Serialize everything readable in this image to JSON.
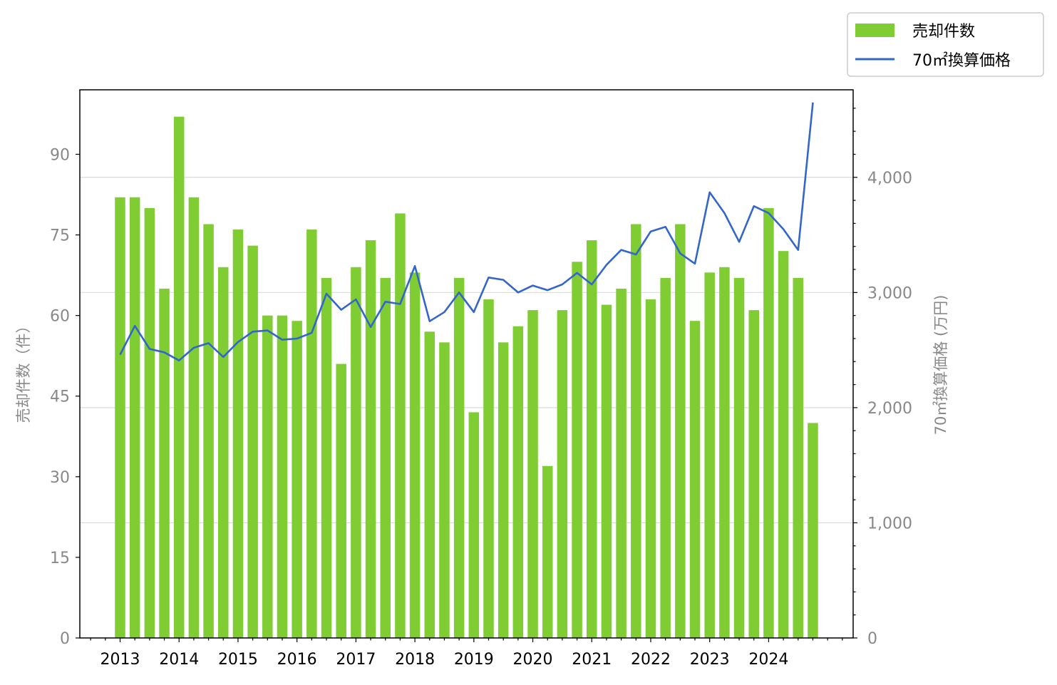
{
  "chart_data": {
    "type": "bar",
    "legend_position": "top-right, outside plot",
    "grid": "horizontal, right axis",
    "ylabel_left": "売却件数（件）",
    "ylabel_right": "70㎡換算価格 (万円)",
    "y_left_ticks": [
      "0",
      "15",
      "30",
      "45",
      "60",
      "75",
      "90"
    ],
    "y_right_ticks": [
      "0",
      "1,000",
      "2,000",
      "3,000",
      "4,000"
    ],
    "ylim_left": [
      0,
      102
    ],
    "ylim_right": [
      0,
      4760
    ],
    "x_year_labels": [
      "2013",
      "2014",
      "2015",
      "2016",
      "2017",
      "2018",
      "2019",
      "2020",
      "2021",
      "2022",
      "2023",
      "2024"
    ],
    "series": [
      {
        "name": "売却件数",
        "type": "bar",
        "color": "#7fcc33",
        "axis": "left",
        "values": [
          82,
          82,
          80,
          65,
          97,
          82,
          77,
          69,
          76,
          73,
          60,
          60,
          59,
          76,
          67,
          51,
          69,
          74,
          67,
          79,
          68,
          57,
          55,
          67,
          42,
          63,
          55,
          58,
          61,
          32,
          61,
          70,
          74,
          62,
          65,
          77,
          63,
          67,
          77,
          59,
          68,
          69,
          67,
          61,
          80,
          72,
          67,
          40
        ]
      },
      {
        "name": "70㎡換算価格",
        "type": "line",
        "color": "#3366cc",
        "axis": "right",
        "values": [
          2460,
          2710,
          2510,
          2480,
          2410,
          2520,
          2560,
          2440,
          2570,
          2660,
          2670,
          2590,
          2600,
          2650,
          2990,
          2850,
          2940,
          2700,
          2920,
          2900,
          3230,
          2750,
          2830,
          3000,
          2830,
          3130,
          3110,
          3000,
          3060,
          3020,
          3070,
          3170,
          3070,
          3240,
          3370,
          3330,
          3530,
          3570,
          3340,
          3250,
          3870,
          3690,
          3440,
          3750,
          3690,
          3550,
          3370,
          4650
        ]
      }
    ]
  }
}
